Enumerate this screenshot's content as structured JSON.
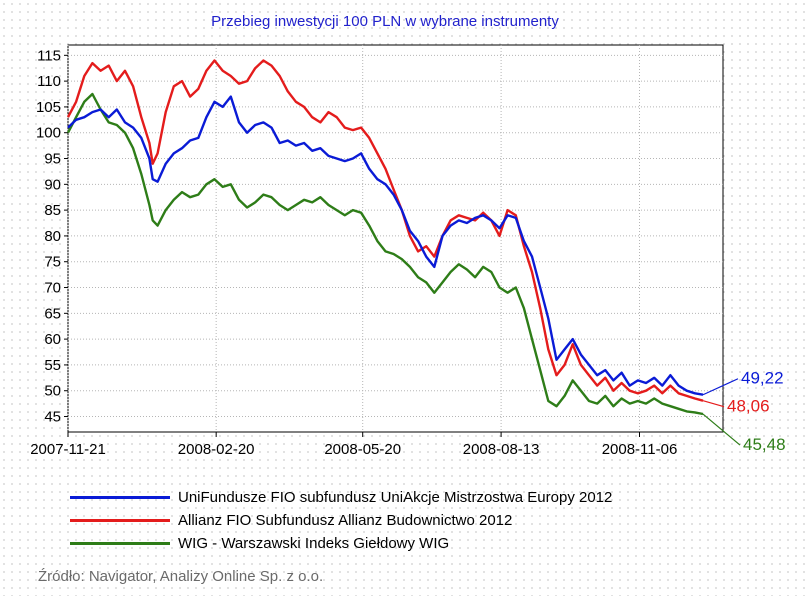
{
  "chart_data": {
    "type": "line",
    "title": "Przebieg inwestycji 100 PLN w wybrane instrumenty",
    "xlabel": "",
    "ylabel": "",
    "ylim": [
      42,
      117
    ],
    "yticks": [
      45,
      50,
      55,
      60,
      65,
      70,
      75,
      80,
      85,
      90,
      95,
      100,
      105,
      110,
      115
    ],
    "xlim": [
      0,
      390
    ],
    "xticks": [
      {
        "label": "2007-11-21",
        "x": 0
      },
      {
        "label": "2008-02-20",
        "x": 91
      },
      {
        "label": "2008-05-20",
        "x": 181
      },
      {
        "label": "2008-08-13",
        "x": 266
      },
      {
        "label": "2008-11-06",
        "x": 351
      }
    ],
    "grid": true,
    "series": [
      {
        "name": "UniFundusze FIO subfundusz UniAkcje Mistrzostwa Europy 2012",
        "color": "#0a1bd6",
        "end_label": "49,22",
        "x": [
          0,
          5,
          10,
          15,
          20,
          25,
          30,
          35,
          40,
          45,
          50,
          52,
          55,
          60,
          65,
          70,
          75,
          80,
          85,
          90,
          95,
          100,
          105,
          110,
          115,
          120,
          125,
          130,
          135,
          140,
          145,
          150,
          155,
          160,
          165,
          170,
          175,
          180,
          185,
          190,
          195,
          200,
          205,
          210,
          215,
          220,
          225,
          230,
          235,
          240,
          245,
          250,
          255,
          260,
          265,
          270,
          275,
          280,
          285,
          290,
          295,
          300,
          305,
          310,
          315,
          320,
          325,
          330,
          335,
          340,
          345,
          350,
          355,
          360,
          365,
          370,
          375,
          380,
          385,
          390
        ],
        "values": [
          101,
          102.5,
          103,
          104,
          104.5,
          103,
          104.5,
          102,
          101,
          99,
          95,
          91,
          90.5,
          94,
          96,
          97,
          98.5,
          99,
          103,
          106,
          105,
          107,
          102,
          100,
          101.5,
          102,
          101,
          98,
          98.5,
          97.5,
          98,
          96.5,
          97,
          95.5,
          95,
          94.5,
          95,
          96,
          93,
          91,
          90,
          88,
          85,
          81,
          79,
          76,
          74,
          80,
          82,
          83,
          82.5,
          83.5,
          84,
          83,
          81.5,
          84,
          83.5,
          79,
          76,
          70,
          64,
          56,
          58,
          60,
          57,
          55,
          53,
          54,
          52,
          53.5,
          51,
          52,
          51.5,
          52.5,
          51,
          53,
          51,
          50,
          49.5,
          49.22
        ]
      },
      {
        "name": "Allianz FIO Subfundusz Allianz Budownictwo 2012",
        "color": "#e41c1c",
        "end_label": "48,06",
        "x": [
          0,
          5,
          10,
          15,
          20,
          25,
          30,
          35,
          40,
          45,
          50,
          52,
          55,
          60,
          65,
          70,
          75,
          80,
          85,
          90,
          95,
          100,
          105,
          110,
          115,
          120,
          125,
          130,
          135,
          140,
          145,
          150,
          155,
          160,
          165,
          170,
          175,
          180,
          185,
          190,
          195,
          200,
          205,
          210,
          215,
          220,
          225,
          230,
          235,
          240,
          245,
          250,
          255,
          260,
          265,
          270,
          275,
          280,
          285,
          290,
          295,
          300,
          305,
          310,
          315,
          320,
          325,
          330,
          335,
          340,
          345,
          350,
          355,
          360,
          365,
          370,
          375,
          380,
          385,
          390
        ],
        "values": [
          103,
          106,
          111,
          113.5,
          112,
          113,
          110,
          112,
          109,
          103,
          98,
          94,
          96,
          104,
          109,
          110,
          107,
          108.5,
          112,
          114,
          112,
          111,
          109.5,
          110,
          112.5,
          114,
          113,
          111,
          108,
          106,
          105,
          103,
          102,
          104,
          103,
          101,
          100.5,
          101,
          99,
          96,
          93,
          89,
          85,
          80,
          77,
          78,
          76,
          80,
          83,
          84,
          83.5,
          83,
          84.5,
          83,
          80,
          85,
          84,
          78,
          73,
          66,
          58,
          53,
          55,
          59,
          55,
          53,
          51,
          52.5,
          50,
          51.5,
          50,
          49.5,
          50,
          51,
          49.5,
          51,
          49.5,
          49,
          48.5,
          48.06
        ]
      },
      {
        "name": "WIG - Warszawski Indeks Giełdowy WIG",
        "color": "#2e7d18",
        "end_label": "45,48",
        "x": [
          0,
          5,
          10,
          15,
          20,
          25,
          30,
          35,
          40,
          45,
          50,
          52,
          55,
          60,
          65,
          70,
          75,
          80,
          85,
          90,
          95,
          100,
          105,
          110,
          115,
          120,
          125,
          130,
          135,
          140,
          145,
          150,
          155,
          160,
          165,
          170,
          175,
          180,
          185,
          190,
          195,
          200,
          205,
          210,
          215,
          220,
          225,
          230,
          235,
          240,
          245,
          250,
          255,
          260,
          265,
          270,
          275,
          280,
          285,
          290,
          295,
          300,
          305,
          310,
          315,
          320,
          325,
          330,
          335,
          340,
          345,
          350,
          355,
          360,
          365,
          370,
          375,
          380,
          385,
          390
        ],
        "values": [
          100,
          103,
          106,
          107.5,
          104.5,
          102,
          101.5,
          100,
          97,
          92,
          86,
          83,
          82,
          85,
          87,
          88.5,
          87.5,
          88,
          90,
          91,
          89.5,
          90,
          87,
          85.5,
          86.5,
          88,
          87.5,
          86,
          85,
          86,
          87,
          86.5,
          87.5,
          86,
          85,
          84,
          85,
          84.5,
          82,
          79,
          77,
          76.5,
          75.5,
          74,
          72,
          71,
          69,
          71,
          73,
          74.5,
          73.5,
          72,
          74,
          73,
          70,
          69,
          70,
          66,
          60,
          54,
          48,
          47,
          49,
          52,
          50,
          48,
          47.5,
          49,
          47,
          48.5,
          47.5,
          48,
          47.5,
          48.5,
          47.5,
          47,
          46.5,
          46,
          45.8,
          45.48
        ]
      }
    ],
    "source": "Źródło: Navigator, Analizy Online Sp. z o.o."
  }
}
